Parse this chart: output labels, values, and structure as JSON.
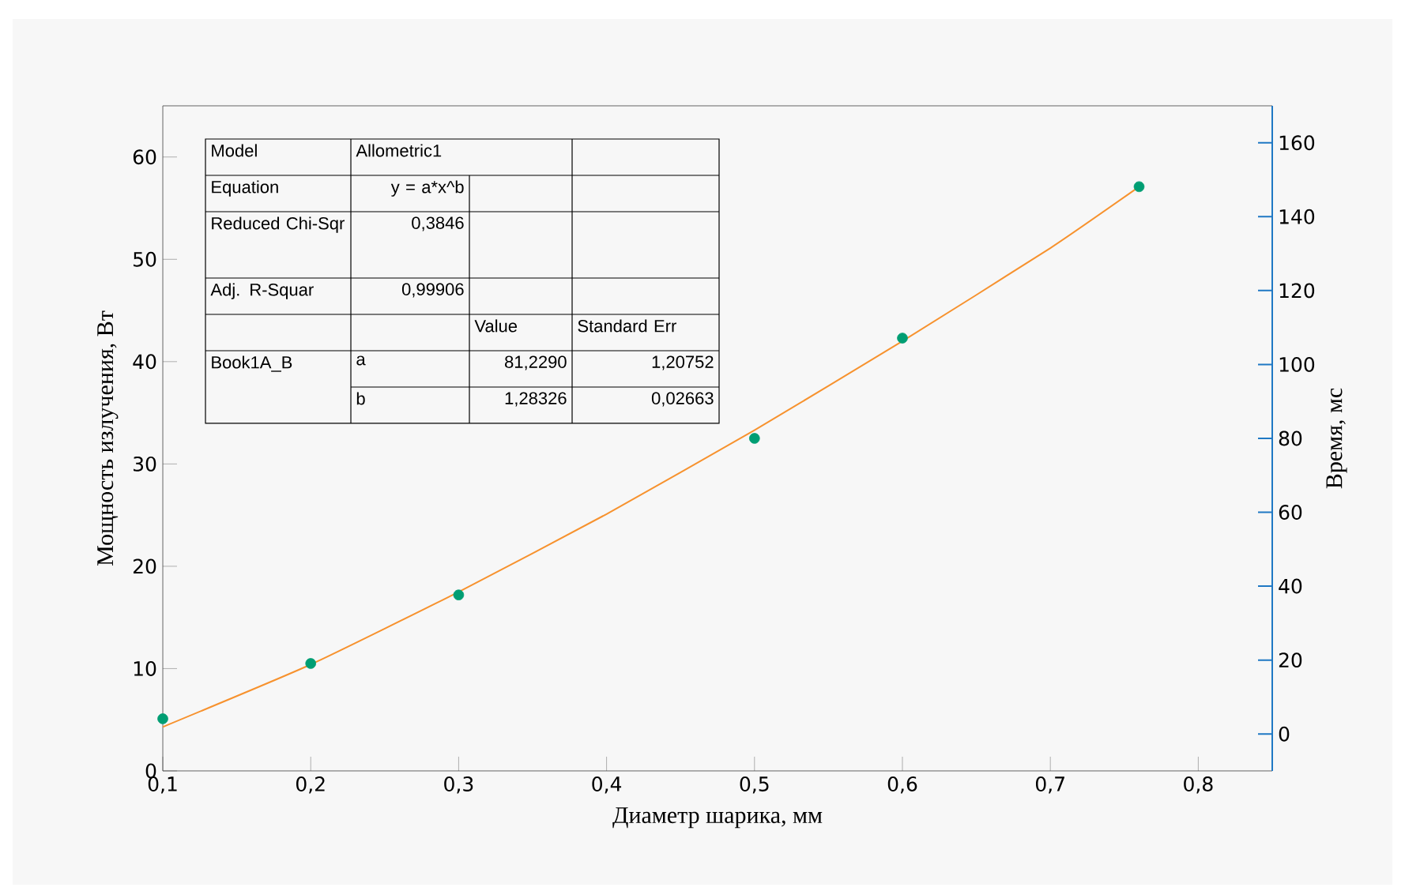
{
  "chart_data": {
    "type": "scatter",
    "xlabel": "Диаметр шарика, мм",
    "ylabel": "Мощность излучения, Вт",
    "y2label": "Время, мс",
    "xlim": [
      0.1,
      0.85
    ],
    "xticks": [
      {
        "value": 0.1,
        "label": "0,1"
      },
      {
        "value": 0.2,
        "label": "0,2"
      },
      {
        "value": 0.3,
        "label": "0,3"
      },
      {
        "value": 0.4,
        "label": "0,4"
      },
      {
        "value": 0.5,
        "label": "0,5"
      },
      {
        "value": 0.6,
        "label": "0,6"
      },
      {
        "value": 0.7,
        "label": "0,7"
      },
      {
        "value": 0.8,
        "label": "0,8"
      }
    ],
    "ylim": [
      0,
      65
    ],
    "yticks": [
      0,
      10,
      20,
      30,
      40,
      50,
      60
    ],
    "y2lim": [
      -10,
      170
    ],
    "y2ticks": [
      0,
      20,
      40,
      60,
      80,
      100,
      120,
      140,
      160
    ],
    "series": [
      {
        "marker": "circle",
        "color": "#009e73",
        "x": [
          0.1,
          0.2,
          0.3,
          0.5,
          0.6,
          0.76
        ],
        "values": [
          5.1,
          10.5,
          17.2,
          32.5,
          42.3,
          57.1
        ]
      },
      {
        "type": "line",
        "marker": "none",
        "color": "#f7922e",
        "x": [
          0.1,
          0.2,
          0.3,
          0.4,
          0.5,
          0.6,
          0.7,
          0.76
        ],
        "values": [
          4.3,
          10.4,
          17.5,
          25.1,
          33.3,
          42.0,
          51.1,
          57.1
        ]
      }
    ],
    "annotations": [
      "Model",
      "Allometric1",
      "Equation",
      "y = a*x^b",
      "Reduced Chi-Sqr",
      "0,3846",
      "Adj. R-Squar",
      "0,99906",
      "Value",
      "Standard Err",
      "Book1A_B",
      "a",
      "81,2290",
      "1,20752",
      "b",
      "1,28326",
      "0,02663"
    ]
  }
}
